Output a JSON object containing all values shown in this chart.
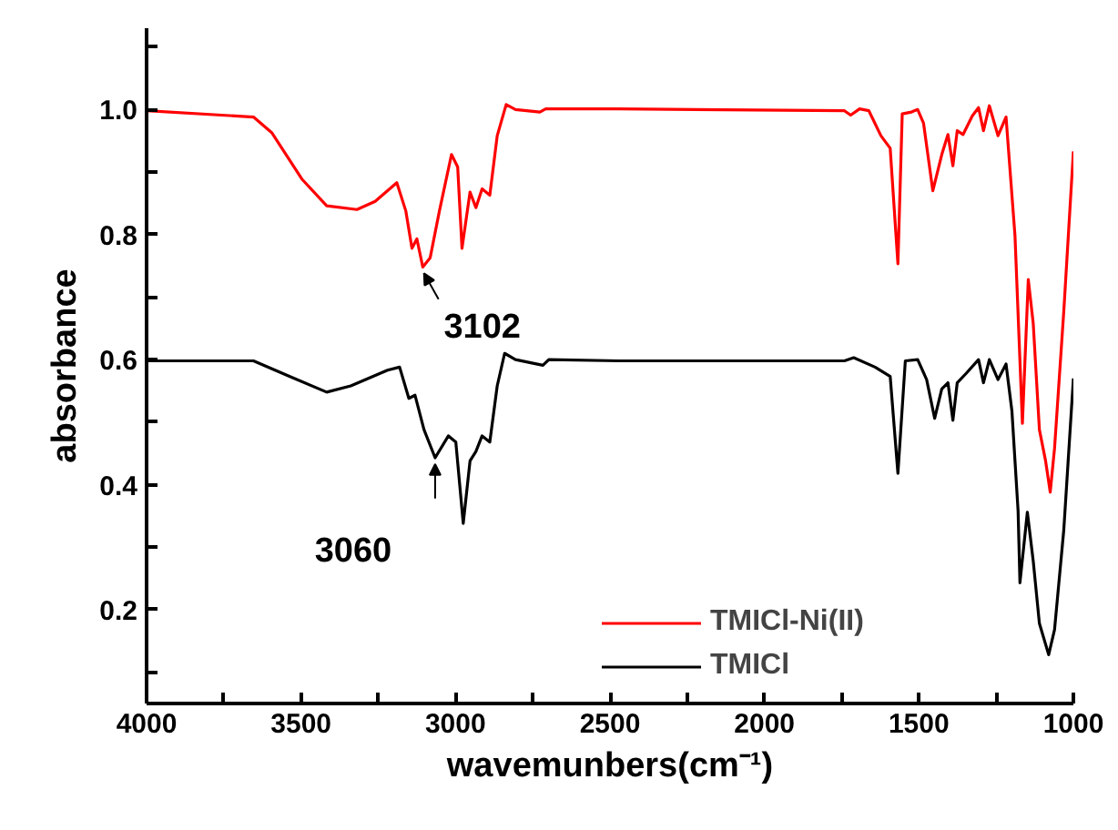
{
  "chart_data": {
    "type": "line",
    "xlabel": "wavemunbers(cm⁻¹)",
    "ylabel": "absorbance",
    "xlim": [
      4000,
      1000
    ],
    "ylim": [
      0.05,
      1.13
    ],
    "xticks": [
      4000,
      {
        "value": 3750,
        "label": null
      },
      3500,
      {
        "value": 3250,
        "label": null
      },
      3000,
      {
        "value": 2750,
        "label": null
      },
      2500,
      {
        "value": 2250,
        "label": null
      },
      2000,
      {
        "value": 1750,
        "label": null
      },
      1500,
      {
        "value": 1250,
        "label": null
      },
      1000
    ],
    "yticks": [
      {
        "value": 0.1,
        "label": null
      },
      0.2,
      {
        "value": 0.3,
        "label": null
      },
      0.4,
      {
        "value": 0.5,
        "label": null
      },
      0.6,
      {
        "value": 0.7,
        "label": null
      },
      0.8,
      {
        "value": 0.9,
        "label": null
      },
      {
        "value": 1.0,
        "label": "1.0"
      },
      {
        "value": 1.1,
        "label": null
      }
    ],
    "grid": false,
    "legend": "bottom",
    "line_style": "solid",
    "series": [
      {
        "name": "TMICl-Ni(II)",
        "color": "#ff0000",
        "x": [
          4000,
          3654,
          3595,
          3496,
          3417,
          3319,
          3260,
          3190,
          3161,
          3141,
          3125,
          3106,
          3082,
          3052,
          3013,
          2993,
          2979,
          2953,
          2934,
          2914,
          2889,
          2865,
          2836,
          2806,
          2727,
          2708,
          2471,
          1741,
          1721,
          1692,
          1662,
          1623,
          1593,
          1568,
          1554,
          1524,
          1504,
          1485,
          1455,
          1426,
          1406,
          1390,
          1376,
          1357,
          1327,
          1307,
          1291,
          1272,
          1244,
          1218,
          1189,
          1165,
          1146,
          1130,
          1110,
          1090,
          1075,
          1061,
          1031,
          1000
        ],
        "values": [
          0.998,
          0.988,
          0.963,
          0.888,
          0.846,
          0.84,
          0.853,
          0.883,
          0.838,
          0.778,
          0.793,
          0.748,
          0.763,
          0.838,
          0.928,
          0.908,
          0.778,
          0.868,
          0.843,
          0.873,
          0.863,
          0.958,
          1.008,
          1.0,
          0.996,
          1.001,
          1.001,
          0.998,
          0.991,
          1.001,
          0.998,
          0.958,
          0.938,
          0.753,
          0.993,
          0.996,
          1.0,
          0.978,
          0.87,
          0.928,
          0.96,
          0.91,
          0.966,
          0.96,
          0.99,
          1.003,
          0.966,
          1.006,
          0.958,
          0.988,
          0.798,
          0.498,
          0.728,
          0.658,
          0.488,
          0.438,
          0.388,
          0.458,
          0.678,
          0.933
        ]
      },
      {
        "name": "TMICl",
        "color": "#000000",
        "x": [
          4000,
          3654,
          3536,
          3417,
          3339,
          3220,
          3181,
          3151,
          3131,
          3102,
          3066,
          3023,
          2999,
          2975,
          2953,
          2934,
          2914,
          2889,
          2865,
          2841,
          2806,
          2717,
          2698,
          2471,
          1741,
          1711,
          1642,
          1593,
          1568,
          1544,
          1504,
          1475,
          1449,
          1426,
          1406,
          1390,
          1376,
          1347,
          1307,
          1291,
          1272,
          1244,
          1218,
          1199,
          1179,
          1173,
          1149,
          1130,
          1110,
          1080,
          1061,
          1031,
          1000
        ],
        "values": [
          0.598,
          0.598,
          0.573,
          0.548,
          0.558,
          0.583,
          0.588,
          0.538,
          0.543,
          0.488,
          0.443,
          0.478,
          0.468,
          0.338,
          0.438,
          0.453,
          0.478,
          0.468,
          0.558,
          0.61,
          0.6,
          0.591,
          0.6,
          0.598,
          0.598,
          0.603,
          0.588,
          0.573,
          0.418,
          0.598,
          0.6,
          0.568,
          0.506,
          0.553,
          0.563,
          0.503,
          0.563,
          0.578,
          0.6,
          0.563,
          0.6,
          0.568,
          0.593,
          0.518,
          0.358,
          0.243,
          0.356,
          0.278,
          0.178,
          0.128,
          0.168,
          0.328,
          0.57
        ]
      }
    ],
    "annotations": [
      {
        "text": "3102",
        "x": 3102,
        "y": 0.748
      },
      {
        "text": "3060",
        "x": 3066,
        "y": 0.443
      }
    ]
  }
}
